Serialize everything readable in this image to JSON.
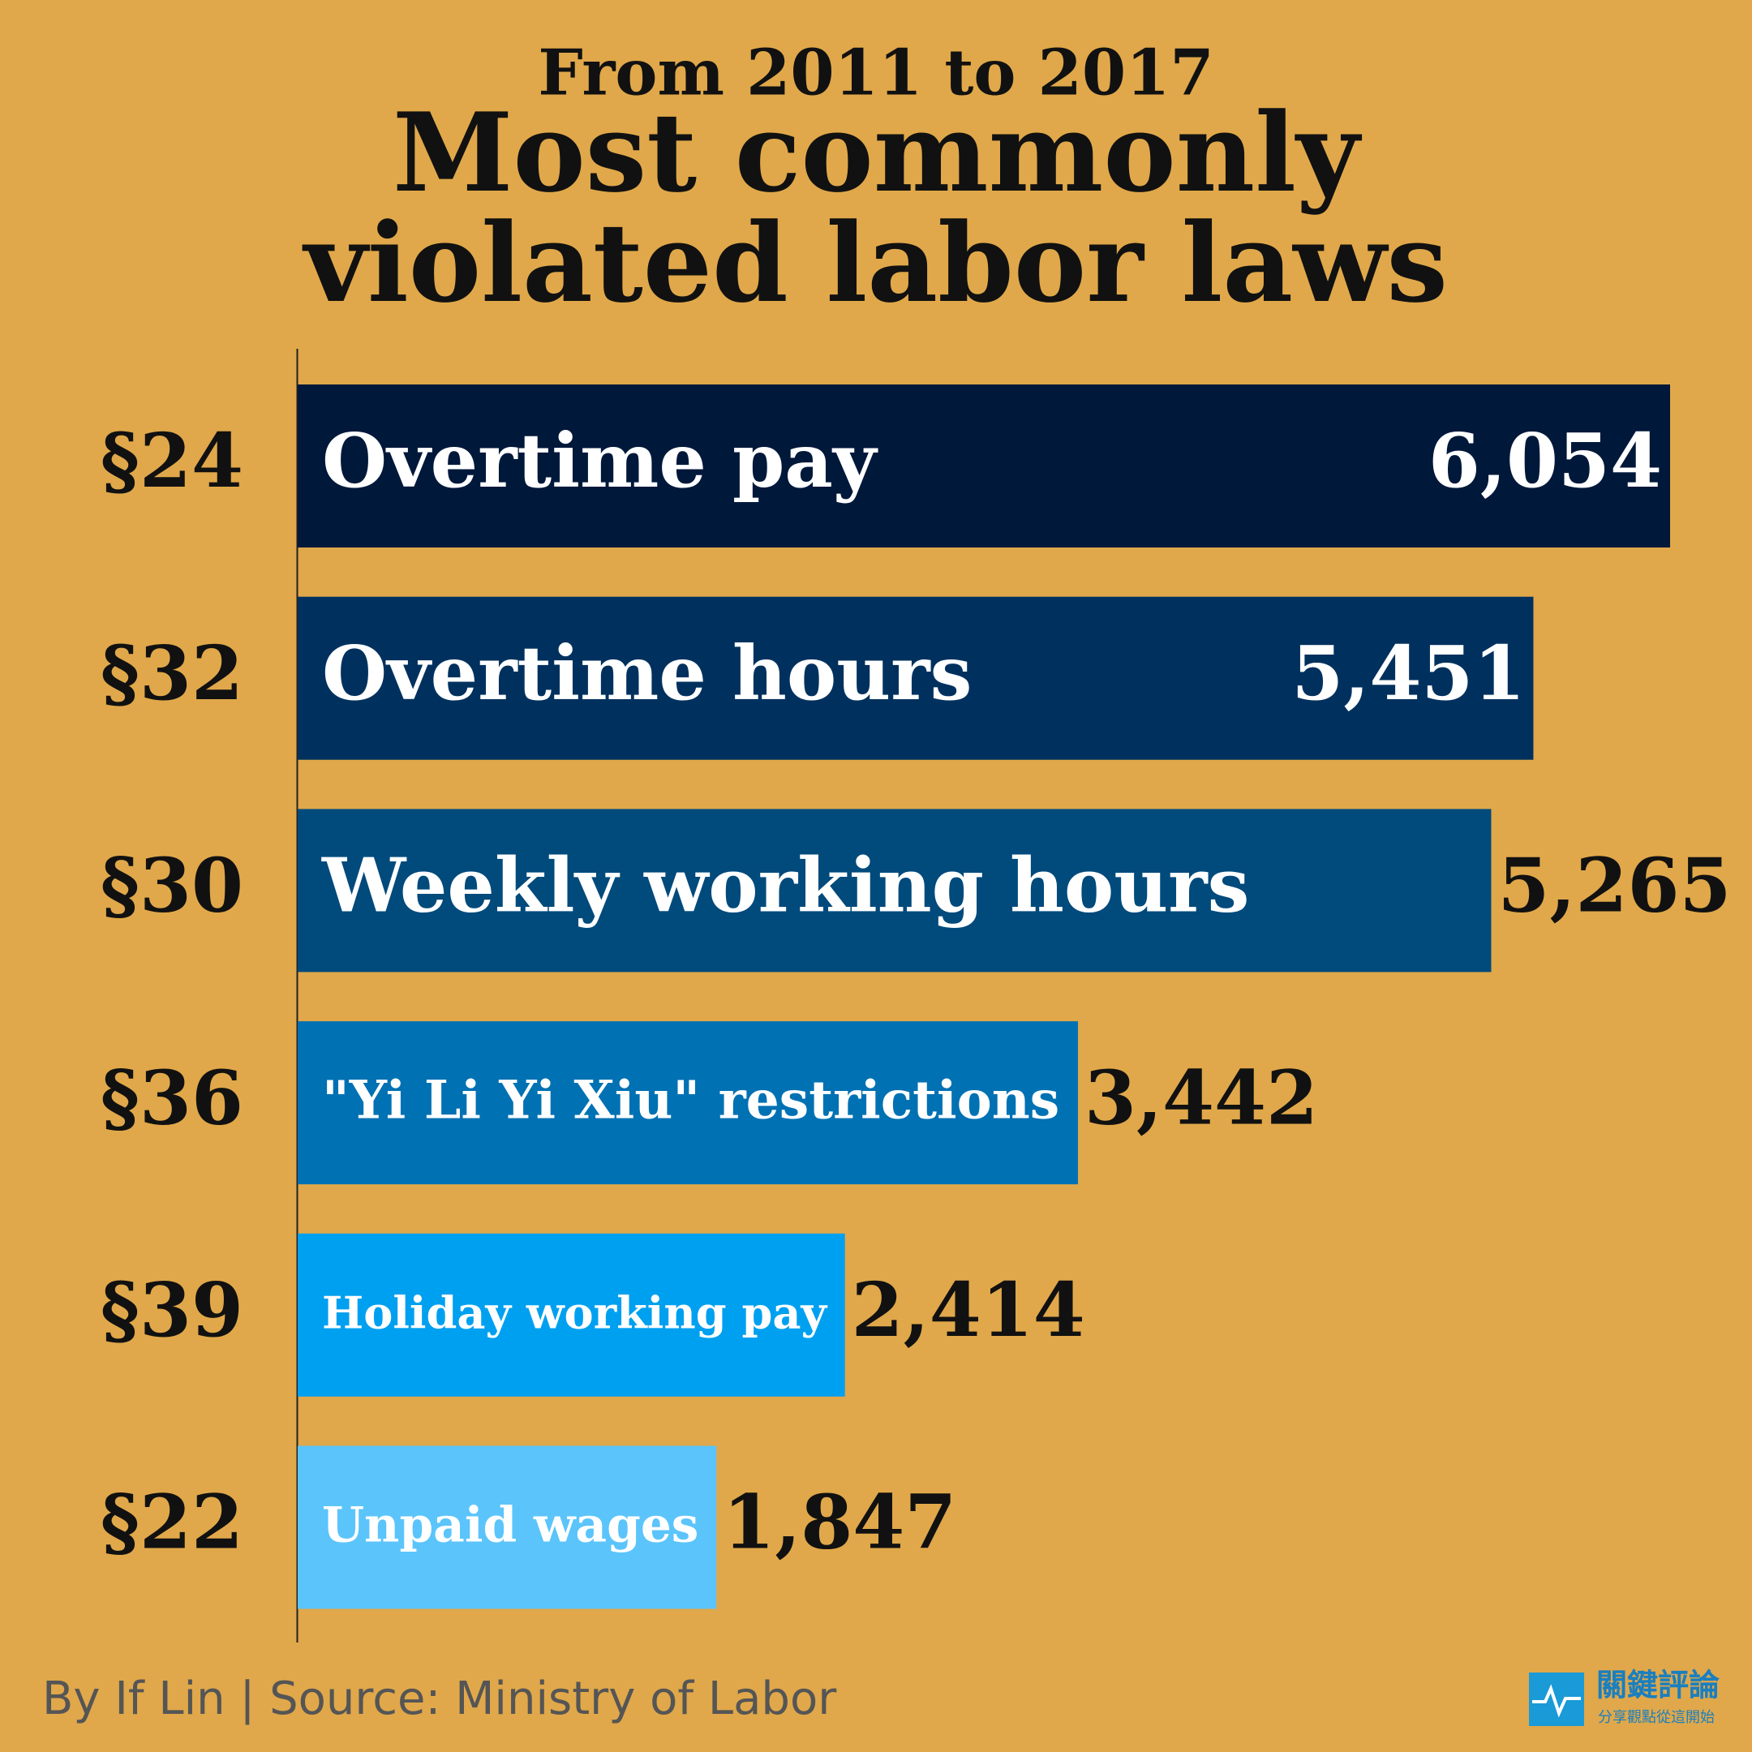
{
  "chart_data": {
    "type": "bar",
    "orientation": "horizontal",
    "subtitle": "From 2011 to 2017",
    "title": [
      "Most commonly",
      "violated labor laws"
    ],
    "categories": [
      "§24",
      "§32",
      "§30",
      "§36",
      "§39",
      "§22"
    ],
    "bar_labels": [
      "Overtime pay",
      "Overtime hours",
      "Weekly working hours",
      "\"Yi Li Yi Xiu\" restrictions",
      "Holiday working pay",
      "Unpaid wages"
    ],
    "values": [
      6054,
      5451,
      5265,
      3442,
      2414,
      1847
    ],
    "value_labels": [
      "6,054",
      "5,451",
      "5,265",
      "3,442",
      "2,414",
      "1,847"
    ],
    "colors": [
      "#00183a",
      "#00315e",
      "#004a7c",
      "#0071b3",
      "#00a0f0",
      "#5bc4fb"
    ]
  },
  "credit": "By If Lin | Source: Ministry of Labor",
  "logo": {
    "name": "關鍵評論",
    "tagline": "分享觀點從這開始"
  }
}
